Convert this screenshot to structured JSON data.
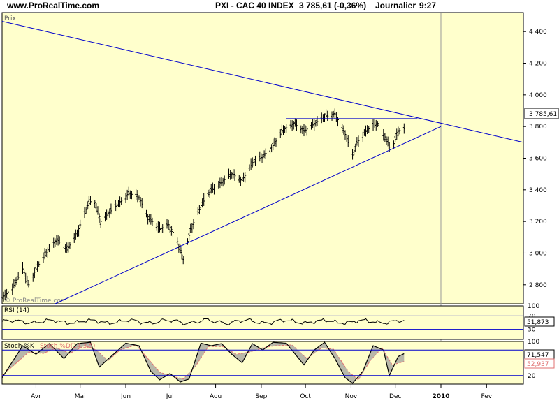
{
  "header": {
    "site": "www.ProRealTime.com",
    "title": "PXI - CAC 40 INDEX",
    "quote": "3 785,61 (-0,36%)",
    "period": "Journalier",
    "time": "9:27"
  },
  "colors": {
    "panel_bg": "#FFFFCC",
    "trendline": "#0000CC",
    "price_bars": "#000000",
    "stoch_d": "#E07070",
    "stoch_fill": "#9A9A9A"
  },
  "chart_data": [
    {
      "type": "ohlc",
      "panel": "price",
      "label": "Prix",
      "watermark": "© ProRealTime.com",
      "last_price_label": "3 785,61",
      "ylim": [
        2680,
        4520
      ],
      "yticks": [
        2800,
        3000,
        3200,
        3400,
        3600,
        3800,
        4000,
        4200,
        4400
      ],
      "ytick_labels": [
        "2 800",
        "3 000",
        "3 200",
        "3 400",
        "3 600",
        "3 800",
        "4 000",
        "4 200",
        "4 400"
      ],
      "x_range": [
        "2009-03-09",
        "2010-02-26"
      ],
      "month_ticks": [
        {
          "date": "2009-04-01",
          "label": "Avr"
        },
        {
          "date": "2009-05-01",
          "label": "Mai"
        },
        {
          "date": "2009-06-01",
          "label": "Jun"
        },
        {
          "date": "2009-07-01",
          "label": "Jul"
        },
        {
          "date": "2009-08-01",
          "label": "Aou"
        },
        {
          "date": "2009-09-01",
          "label": "Sep"
        },
        {
          "date": "2009-10-01",
          "label": "Oct"
        },
        {
          "date": "2009-11-01",
          "label": "Nov"
        },
        {
          "date": "2009-12-01",
          "label": "Dec"
        },
        {
          "date": "2010-01-01",
          "label": "2010"
        },
        {
          "date": "2010-02-01",
          "label": "Fev"
        }
      ],
      "close_path": [
        [
          "2009-03-09",
          2720
        ],
        [
          "2009-03-16",
          2780
        ],
        [
          "2009-03-23",
          2900
        ],
        [
          "2009-03-27",
          2800
        ],
        [
          "2009-04-01",
          2900
        ],
        [
          "2009-04-08",
          3000
        ],
        [
          "2009-04-15",
          3090
        ],
        [
          "2009-04-22",
          3020
        ],
        [
          "2009-04-29",
          3130
        ],
        [
          "2009-05-06",
          3300
        ],
        [
          "2009-05-10",
          3350
        ],
        [
          "2009-05-15",
          3200
        ],
        [
          "2009-05-20",
          3250
        ],
        [
          "2009-05-27",
          3310
        ],
        [
          "2009-06-03",
          3380
        ],
        [
          "2009-06-10",
          3350
        ],
        [
          "2009-06-16",
          3230
        ],
        [
          "2009-06-24",
          3150
        ],
        [
          "2009-06-30",
          3180
        ],
        [
          "2009-07-05",
          3100
        ],
        [
          "2009-07-10",
          2960
        ],
        [
          "2009-07-15",
          3150
        ],
        [
          "2009-07-22",
          3300
        ],
        [
          "2009-07-29",
          3400
        ],
        [
          "2009-08-05",
          3450
        ],
        [
          "2009-08-12",
          3500
        ],
        [
          "2009-08-19",
          3460
        ],
        [
          "2009-08-26",
          3570
        ],
        [
          "2009-09-02",
          3610
        ],
        [
          "2009-09-09",
          3680
        ],
        [
          "2009-09-16",
          3780
        ],
        [
          "2009-09-23",
          3820
        ],
        [
          "2009-09-30",
          3770
        ],
        [
          "2009-10-07",
          3820
        ],
        [
          "2009-10-14",
          3860
        ],
        [
          "2009-10-21",
          3880
        ],
        [
          "2009-10-28",
          3750
        ],
        [
          "2009-11-02",
          3620
        ],
        [
          "2009-11-05",
          3700
        ],
        [
          "2009-11-12",
          3780
        ],
        [
          "2009-11-19",
          3820
        ],
        [
          "2009-11-26",
          3700
        ],
        [
          "2009-11-28",
          3640
        ],
        [
          "2009-12-03",
          3770
        ],
        [
          "2009-12-07",
          3786
        ]
      ],
      "trendlines": [
        {
          "name": "descending-resistance",
          "points": [
            [
              "2009-03-09",
              4465
            ],
            [
              "2010-02-26",
              3700
            ]
          ]
        },
        {
          "name": "ascending-support",
          "points": [
            [
              "2009-04-14",
              2680
            ],
            [
              "2010-01-01",
              3800
            ]
          ]
        },
        {
          "name": "horizontal-neckline",
          "points": [
            [
              "2009-09-18",
              3850
            ],
            [
              "2009-12-16",
              3850
            ]
          ]
        }
      ]
    },
    {
      "type": "line",
      "panel": "rsi",
      "label": "RSI (14)",
      "ylim": [
        0,
        100
      ],
      "levels": [
        70,
        30
      ],
      "axis_labels": [
        "100",
        "70",
        "30"
      ],
      "last_value_label": "51,873",
      "last_value": 51.873
    },
    {
      "type": "line",
      "panel": "stochastic",
      "label_k": "Stoch %K",
      "label_d": "Stoch %D(14,3,5)",
      "ylim": [
        0,
        100
      ],
      "levels": [
        80,
        20
      ],
      "axis_labels": [
        "100",
        "20"
      ],
      "last_k_label": "71,547",
      "last_d_label": "52,937",
      "last_k": 71.547,
      "last_d": 52.937,
      "k_path": [
        [
          "2009-03-09",
          15
        ],
        [
          "2009-03-23",
          90
        ],
        [
          "2009-04-01",
          70
        ],
        [
          "2009-04-10",
          95
        ],
        [
          "2009-04-20",
          60
        ],
        [
          "2009-04-29",
          95
        ],
        [
          "2009-05-08",
          98
        ],
        [
          "2009-05-14",
          40
        ],
        [
          "2009-05-22",
          65
        ],
        [
          "2009-06-01",
          96
        ],
        [
          "2009-06-10",
          90
        ],
        [
          "2009-06-18",
          30
        ],
        [
          "2009-06-24",
          10
        ],
        [
          "2009-07-01",
          25
        ],
        [
          "2009-07-08",
          5
        ],
        [
          "2009-07-14",
          12
        ],
        [
          "2009-07-22",
          96
        ],
        [
          "2009-07-29",
          90
        ],
        [
          "2009-08-05",
          95
        ],
        [
          "2009-08-12",
          70
        ],
        [
          "2009-08-19",
          50
        ],
        [
          "2009-08-26",
          95
        ],
        [
          "2009-09-02",
          80
        ],
        [
          "2009-09-09",
          98
        ],
        [
          "2009-09-18",
          96
        ],
        [
          "2009-09-30",
          45
        ],
        [
          "2009-10-07",
          80
        ],
        [
          "2009-10-14",
          98
        ],
        [
          "2009-10-21",
          60
        ],
        [
          "2009-10-28",
          15
        ],
        [
          "2009-11-02",
          2
        ],
        [
          "2009-11-09",
          30
        ],
        [
          "2009-11-16",
          90
        ],
        [
          "2009-11-23",
          80
        ],
        [
          "2009-11-27",
          20
        ],
        [
          "2009-12-03",
          65
        ],
        [
          "2009-12-07",
          71.5
        ]
      ],
      "d_path": [
        [
          "2009-03-09",
          20
        ],
        [
          "2009-03-27",
          75
        ],
        [
          "2009-04-06",
          72
        ],
        [
          "2009-04-15",
          85
        ],
        [
          "2009-04-24",
          72
        ],
        [
          "2009-05-04",
          90
        ],
        [
          "2009-05-12",
          80
        ],
        [
          "2009-05-20",
          55
        ],
        [
          "2009-05-28",
          80
        ],
        [
          "2009-06-08",
          92
        ],
        [
          "2009-06-16",
          60
        ],
        [
          "2009-06-24",
          28
        ],
        [
          "2009-07-03",
          18
        ],
        [
          "2009-07-10",
          12
        ],
        [
          "2009-07-18",
          40
        ],
        [
          "2009-07-27",
          88
        ],
        [
          "2009-08-06",
          88
        ],
        [
          "2009-08-15",
          70
        ],
        [
          "2009-08-24",
          75
        ],
        [
          "2009-09-02",
          85
        ],
        [
          "2009-09-10",
          90
        ],
        [
          "2009-09-22",
          92
        ],
        [
          "2009-10-02",
          60
        ],
        [
          "2009-10-12",
          85
        ],
        [
          "2009-10-20",
          82
        ],
        [
          "2009-10-30",
          30
        ],
        [
          "2009-11-06",
          10
        ],
        [
          "2009-11-14",
          55
        ],
        [
          "2009-11-22",
          85
        ],
        [
          "2009-11-29",
          45
        ],
        [
          "2009-12-07",
          52.9
        ]
      ]
    }
  ]
}
